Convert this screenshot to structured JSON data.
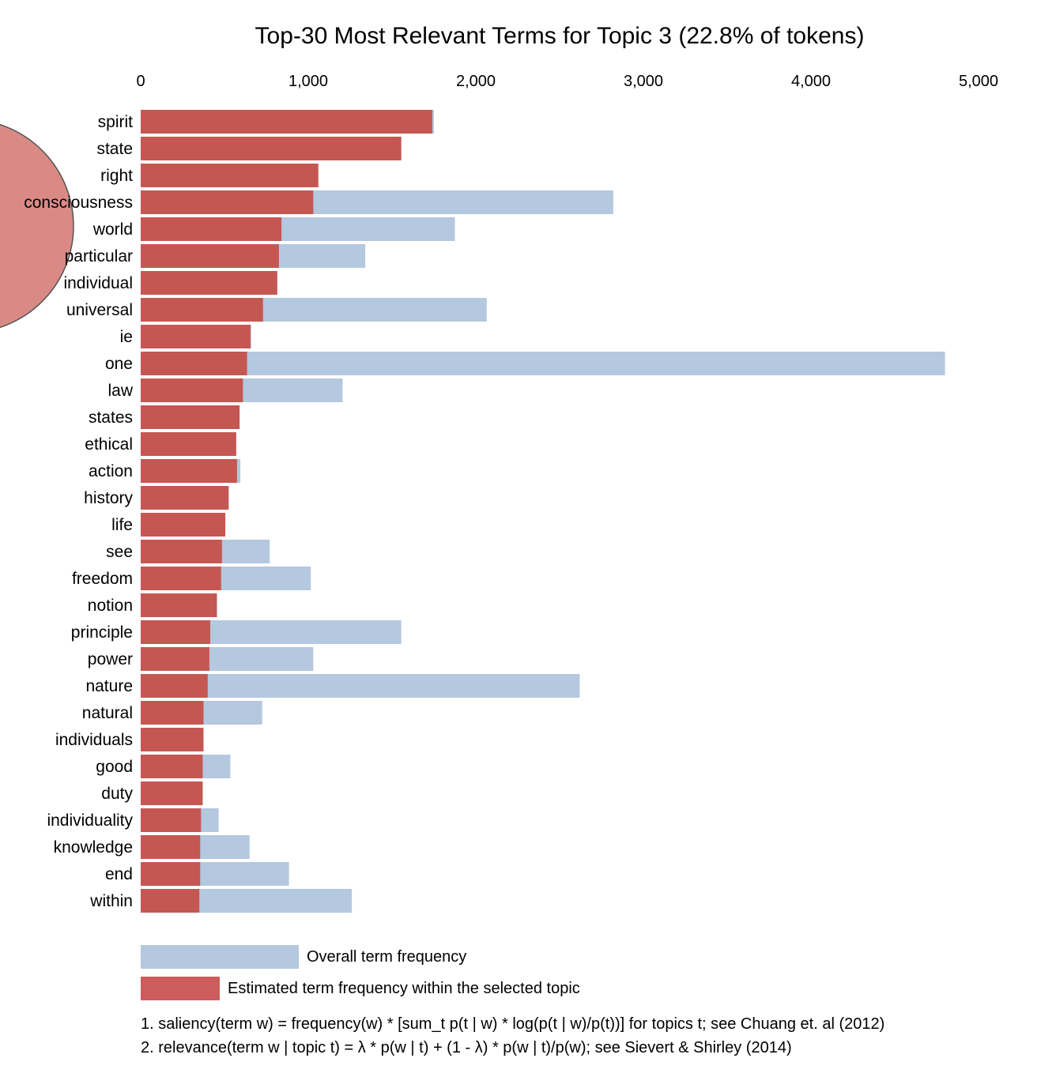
{
  "chart_data": {
    "type": "bar",
    "orientation": "horizontal",
    "title": "Top-30 Most Relevant Terms for Topic 3 (22.8% of tokens)",
    "xlim": [
      0,
      5000
    ],
    "x_ticks": [
      0,
      1000,
      2000,
      3000,
      4000,
      5000
    ],
    "x_tick_labels": [
      "0",
      "1,000",
      "2,000",
      "3,000",
      "4,000",
      "5,000"
    ],
    "grid": false,
    "categories": [
      "spirit",
      "state",
      "right",
      "consciousness",
      "world",
      "particular",
      "individual",
      "universal",
      "ie",
      "one",
      "law",
      "states",
      "ethical",
      "action",
      "history",
      "life",
      "see",
      "freedom",
      "notion",
      "principle",
      "power",
      "nature",
      "natural",
      "individuals",
      "good",
      "duty",
      "individuality",
      "knowledge",
      "end",
      "within"
    ],
    "series": [
      {
        "name": "Overall term frequency",
        "color": "#b4c8df",
        "values": [
          1750,
          1555,
          1060,
          2820,
          1875,
          1340,
          815,
          2065,
          660,
          4800,
          1205,
          590,
          570,
          595,
          525,
          505,
          770,
          1015,
          455,
          1555,
          1030,
          2620,
          725,
          375,
          535,
          370,
          465,
          650,
          885,
          1260
        ]
      },
      {
        "name": "Estimated term frequency within the selected topic",
        "color": "#c55753",
        "values": [
          1740,
          1555,
          1060,
          1030,
          840,
          825,
          815,
          730,
          655,
          635,
          610,
          590,
          570,
          575,
          525,
          505,
          485,
          480,
          455,
          415,
          410,
          400,
          375,
          375,
          370,
          370,
          360,
          355,
          355,
          350
        ]
      }
    ],
    "legend": {
      "placement": "bottom",
      "items": [
        {
          "label": "Overall term frequency",
          "color": "#b4c8df"
        },
        {
          "label": "Estimated term frequency within the selected topic",
          "color": "#cd5c5c"
        }
      ]
    },
    "notes": [
      "1. saliency(term w) = frequency(w) * [sum_t p(t | w) * log(p(t | w)/p(t))] for topics t; see Chuang et. al (2012)",
      "2. relevance(term w | topic t) = λ * p(w | t) + (1 - λ) * p(w | t)/p(w); see Sievert & Shirley (2014)"
    ]
  }
}
